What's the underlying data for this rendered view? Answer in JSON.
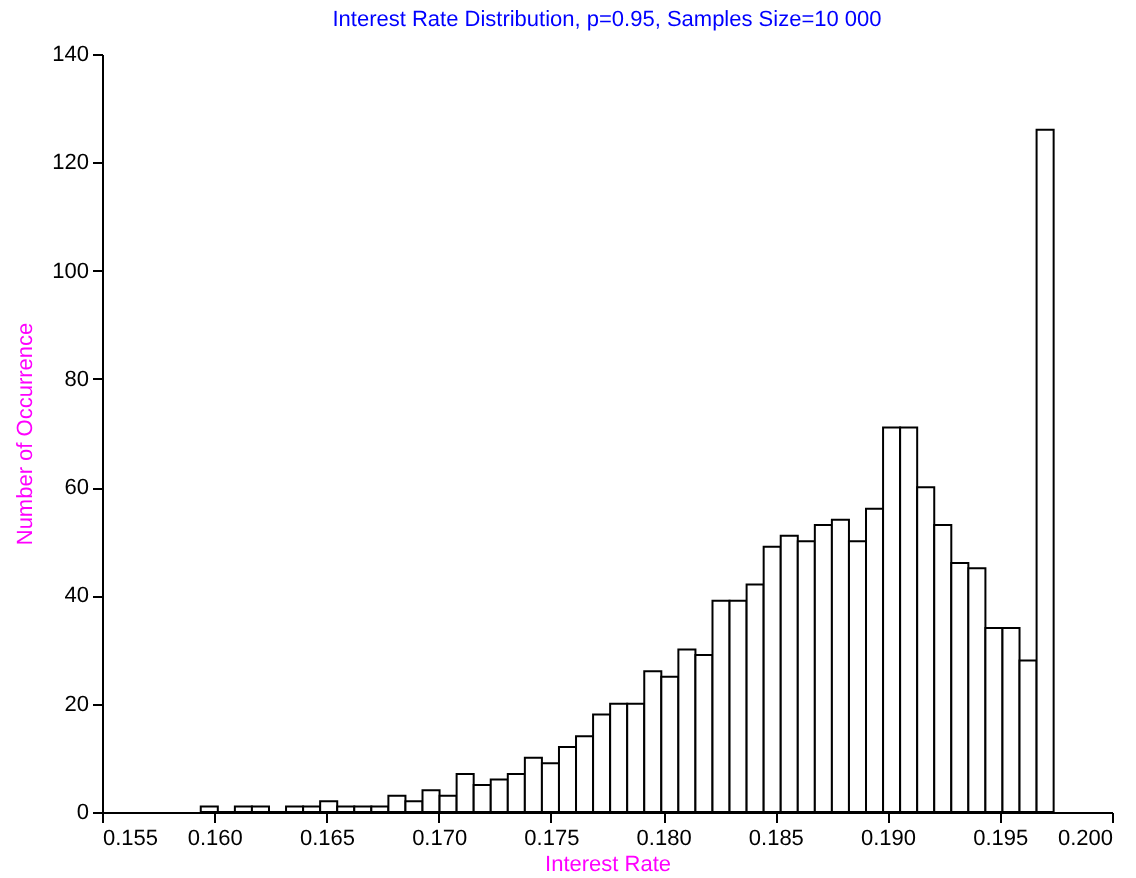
{
  "chart_data": {
    "type": "histogram",
    "title": "Interest Rate Distribution, p=0.95, Samples Size=10 000",
    "xlabel": "Interest Rate",
    "ylabel": "Number of Occurrence",
    "bins": [
      0.1594,
      0.16016,
      0.16092,
      0.16168,
      0.16244,
      0.1632,
      0.16396,
      0.16472,
      0.16548,
      0.16624,
      0.167,
      0.16776,
      0.16852,
      0.16928,
      0.17004,
      0.1708,
      0.17156,
      0.17232,
      0.17308,
      0.17384,
      0.1746,
      0.17536,
      0.17612,
      0.17688,
      0.17764,
      0.1784,
      0.17916,
      0.17992,
      0.18068,
      0.18144,
      0.1822,
      0.18296,
      0.18372,
      0.18448,
      0.18524,
      0.186,
      0.18676,
      0.18752,
      0.18828,
      0.18904,
      0.1898,
      0.19056,
      0.19132,
      0.19208,
      0.19284,
      0.1936,
      0.19436,
      0.19512,
      0.19588,
      0.19664,
      0.1974
    ],
    "values": [
      1,
      0,
      1,
      1,
      0,
      1,
      1,
      2,
      1,
      1,
      1,
      3,
      2,
      4,
      3,
      7,
      5,
      6,
      7,
      10,
      9,
      12,
      14,
      18,
      20,
      20,
      26,
      25,
      30,
      29,
      39,
      39,
      42,
      49,
      51,
      50,
      53,
      54,
      50,
      56,
      71,
      71,
      60,
      53,
      46,
      45,
      34,
      34,
      28,
      126
    ],
    "color": "#ffffff",
    "xlim": [
      0.155,
      0.2
    ],
    "xticks": [
      0.155,
      {
        "value": 0.16,
        "label": "0.160"
      },
      0.165,
      {
        "value": 0.17,
        "label": "0.170"
      },
      0.175,
      {
        "value": 0.18,
        "label": "0.180"
      },
      0.185,
      {
        "value": 0.19,
        "label": "0.190"
      },
      0.195,
      {
        "value": 0.2,
        "label": "0.200"
      }
    ],
    "ylim": [
      0,
      140
    ],
    "yticks": [
      0,
      20,
      40,
      60,
      80,
      100,
      120,
      140
    ]
  }
}
